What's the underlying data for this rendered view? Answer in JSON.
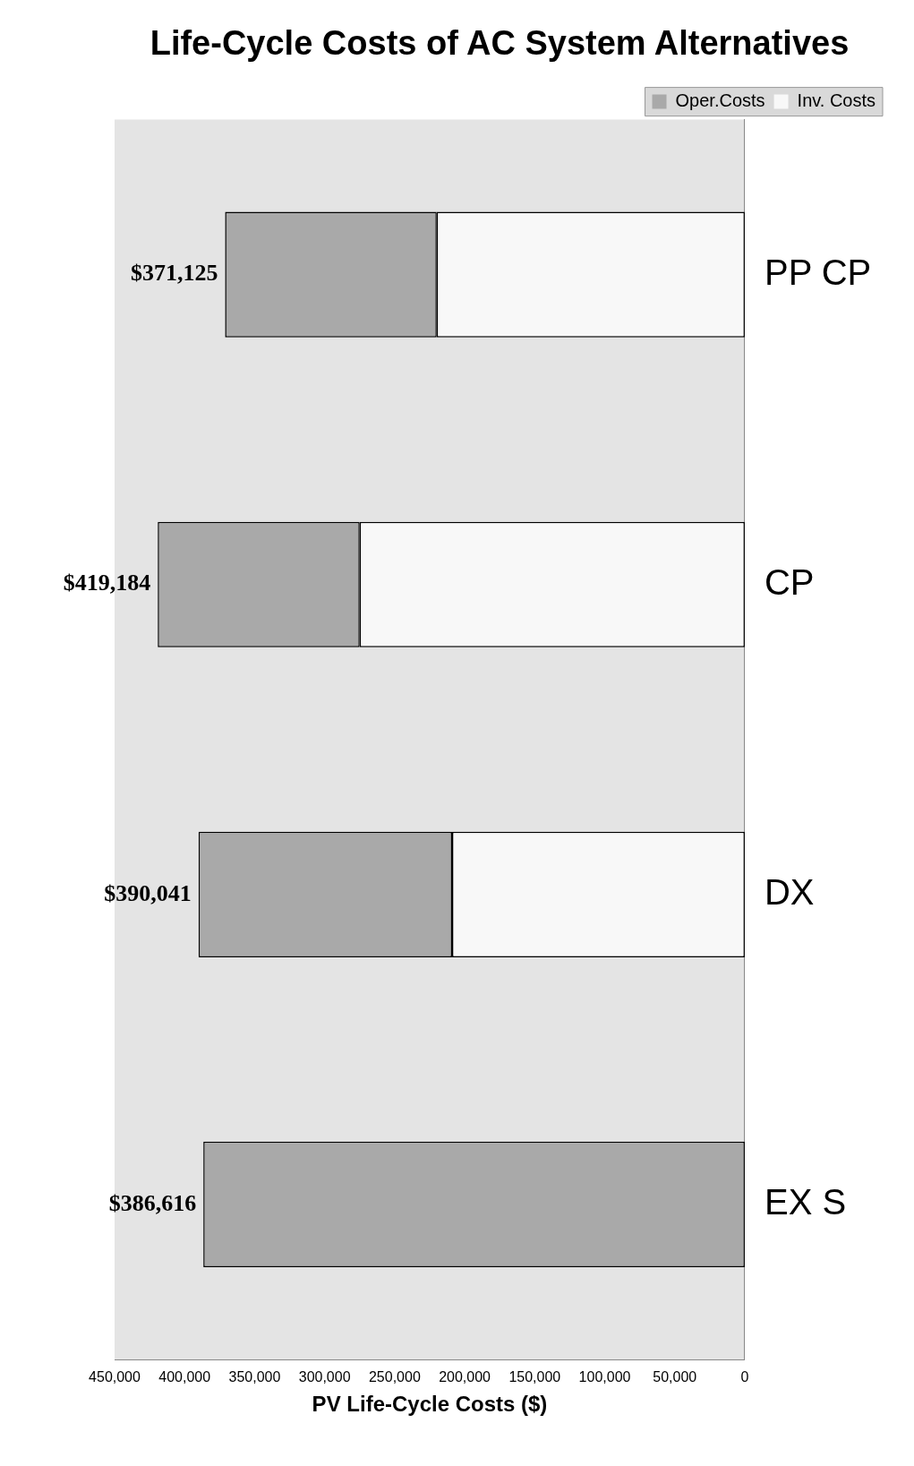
{
  "chart_data": {
    "type": "bar",
    "title": "Life-Cycle Costs of AC System Alternatives",
    "xlabel": "PV Life-Cycle Costs ($)",
    "orientation": "horizontal",
    "categories": [
      "PP CP",
      "CP",
      "DX",
      "EX S"
    ],
    "stacked": true,
    "series": [
      {
        "name": "Inv. Costs",
        "color": "#f8f8f8",
        "values": [
          220000,
          275000,
          209000,
          0
        ]
      },
      {
        "name": "Oper.Costs",
        "color": "#a9a9a9",
        "values": [
          151125,
          144184,
          181041,
          386616
        ]
      }
    ],
    "totals": [
      "$371,125",
      "$419,184",
      "$390,041",
      "$386,616"
    ],
    "xlim": [
      450000,
      0
    ],
    "xticks": [
      {
        "value": 0,
        "label": "0"
      },
      {
        "value": 50000,
        "label": "50,000"
      },
      {
        "value": 100000,
        "label": "100,000"
      },
      {
        "value": 150000,
        "label": "150,000"
      },
      {
        "value": 200000,
        "label": "200,000"
      },
      {
        "value": 250000,
        "label": "250,000"
      },
      {
        "value": 300000,
        "label": "300,000"
      },
      {
        "value": 350000,
        "label": "350,000"
      },
      {
        "value": 400000,
        "label": "400,000"
      },
      {
        "value": 450000,
        "label": "450,000"
      }
    ],
    "legend": "top right"
  }
}
